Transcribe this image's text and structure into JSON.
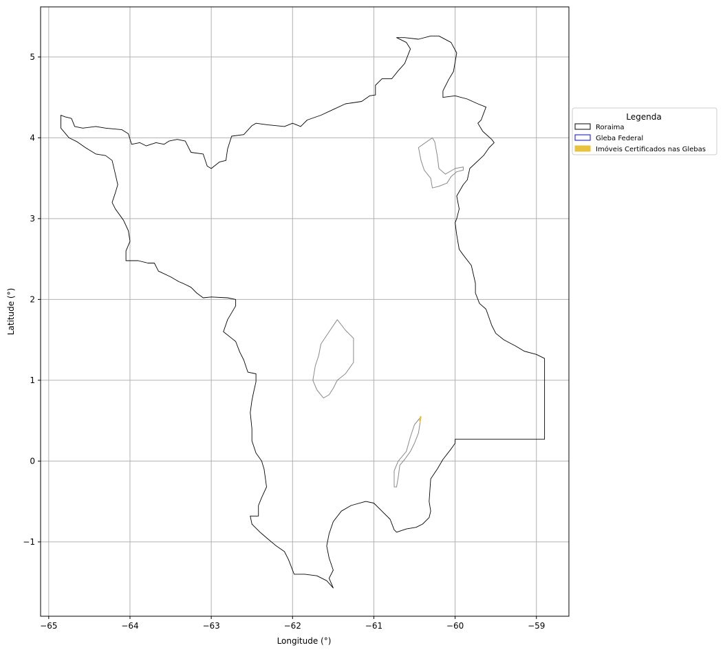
{
  "chart_data": {
    "type": "map",
    "xlabel": "Longitude (°)",
    "ylabel": "Latitude (°)",
    "xlim": [
      -65.1,
      -58.6
    ],
    "ylim": [
      -1.92,
      5.62
    ],
    "grid": true,
    "x_ticks": [
      -65,
      -64,
      -63,
      -62,
      -61,
      -60,
      -59
    ],
    "y_ticks": [
      -1,
      0,
      1,
      2,
      3,
      4,
      5
    ],
    "x_tick_labels": [
      "−65",
      "−64",
      "−63",
      "−62",
      "−61",
      "−60",
      "−59"
    ],
    "y_tick_labels": [
      "−1",
      "0",
      "1",
      "2",
      "3",
      "4",
      "5"
    ],
    "legend": {
      "title": "Legenda",
      "position": "right",
      "entries": [
        {
          "label": "Roraima",
          "edgecolor": "#000000",
          "facecolor": "#ffffff"
        },
        {
          "label": "Gleba Federal",
          "edgecolor": "#0000ff",
          "facecolor": "#ffffff"
        },
        {
          "label": "Imóveis Certificados nas Glebas",
          "edgecolor": "#e8c13e",
          "facecolor": "#e8c13e"
        }
      ]
    },
    "colors": {
      "roraima": "#000000",
      "gleba": "#888888",
      "imoveis": "#e8c13e",
      "grid": "#b0b0b0"
    },
    "roraima_outline": [
      [
        -64.85,
        4.28
      ],
      [
        -64.8,
        4.26
      ],
      [
        -64.72,
        4.24
      ],
      [
        -64.68,
        4.14
      ],
      [
        -64.58,
        4.12
      ],
      [
        -64.42,
        4.14
      ],
      [
        -64.3,
        4.12
      ],
      [
        -64.1,
        4.1
      ],
      [
        -64.02,
        4.05
      ],
      [
        -63.98,
        3.92
      ],
      [
        -63.88,
        3.94
      ],
      [
        -63.8,
        3.9
      ],
      [
        -63.68,
        3.94
      ],
      [
        -63.58,
        3.92
      ],
      [
        -63.52,
        3.96
      ],
      [
        -63.42,
        3.98
      ],
      [
        -63.32,
        3.96
      ],
      [
        -63.25,
        3.82
      ],
      [
        -63.1,
        3.8
      ],
      [
        -63.05,
        3.65
      ],
      [
        -63.0,
        3.62
      ],
      [
        -62.9,
        3.7
      ],
      [
        -62.82,
        3.72
      ],
      [
        -62.8,
        3.86
      ],
      [
        -62.75,
        4.02
      ],
      [
        -62.6,
        4.04
      ],
      [
        -62.5,
        4.15
      ],
      [
        -62.45,
        4.18
      ],
      [
        -62.3,
        4.16
      ],
      [
        -62.1,
        4.14
      ],
      [
        -62.0,
        4.18
      ],
      [
        -61.9,
        4.14
      ],
      [
        -61.82,
        4.22
      ],
      [
        -61.65,
        4.28
      ],
      [
        -61.5,
        4.35
      ],
      [
        -61.35,
        4.42
      ],
      [
        -61.15,
        4.45
      ],
      [
        -61.05,
        4.52
      ],
      [
        -60.98,
        4.53
      ],
      [
        -60.98,
        4.65
      ],
      [
        -60.9,
        4.73
      ],
      [
        -60.78,
        4.73
      ],
      [
        -60.7,
        4.83
      ],
      [
        -60.62,
        4.92
      ],
      [
        -60.55,
        5.1
      ],
      [
        -60.6,
        5.18
      ],
      [
        -60.72,
        5.24
      ],
      [
        -60.62,
        5.24
      ],
      [
        -60.45,
        5.22
      ],
      [
        -60.3,
        5.26
      ],
      [
        -60.2,
        5.26
      ],
      [
        -60.05,
        5.18
      ],
      [
        -59.98,
        5.05
      ],
      [
        -60.02,
        4.82
      ],
      [
        -60.08,
        4.72
      ],
      [
        -60.15,
        4.58
      ],
      [
        -60.15,
        4.5
      ],
      [
        -60.0,
        4.52
      ],
      [
        -59.85,
        4.48
      ],
      [
        -59.72,
        4.42
      ],
      [
        -59.62,
        4.38
      ],
      [
        -59.68,
        4.22
      ],
      [
        -59.72,
        4.18
      ],
      [
        -59.66,
        4.08
      ],
      [
        -59.55,
        3.98
      ],
      [
        -59.52,
        3.94
      ],
      [
        -59.58,
        3.88
      ],
      [
        -59.65,
        3.78
      ],
      [
        -59.82,
        3.62
      ],
      [
        -59.85,
        3.48
      ],
      [
        -59.9,
        3.42
      ],
      [
        -59.98,
        3.28
      ],
      [
        -59.95,
        3.12
      ],
      [
        -59.98,
        3.0
      ],
      [
        -60.0,
        2.95
      ],
      [
        -59.98,
        2.8
      ],
      [
        -59.95,
        2.62
      ],
      [
        -59.9,
        2.55
      ],
      [
        -59.8,
        2.42
      ],
      [
        -59.75,
        2.2
      ],
      [
        -59.75,
        2.08
      ],
      [
        -59.7,
        1.95
      ],
      [
        -59.62,
        1.88
      ],
      [
        -59.55,
        1.68
      ],
      [
        -59.5,
        1.58
      ],
      [
        -59.4,
        1.5
      ],
      [
        -59.25,
        1.42
      ],
      [
        -59.15,
        1.36
      ],
      [
        -59.0,
        1.32
      ],
      [
        -58.9,
        1.27
      ],
      [
        -58.9,
        0.27
      ],
      [
        -60.0,
        0.27
      ],
      [
        -60.0,
        0.22
      ],
      [
        -60.05,
        0.15
      ],
      [
        -60.15,
        0.02
      ],
      [
        -60.22,
        -0.1
      ],
      [
        -60.3,
        -0.22
      ],
      [
        -60.32,
        -0.5
      ],
      [
        -60.3,
        -0.62
      ],
      [
        -60.32,
        -0.7
      ],
      [
        -60.4,
        -0.78
      ],
      [
        -60.48,
        -0.82
      ],
      [
        -60.6,
        -0.84
      ],
      [
        -60.72,
        -0.88
      ],
      [
        -60.75,
        -0.85
      ],
      [
        -60.8,
        -0.72
      ],
      [
        -60.9,
        -0.62
      ],
      [
        -61.0,
        -0.52
      ],
      [
        -61.1,
        -0.5
      ],
      [
        -61.28,
        -0.55
      ],
      [
        -61.4,
        -0.62
      ],
      [
        -61.5,
        -0.75
      ],
      [
        -61.55,
        -0.9
      ],
      [
        -61.58,
        -1.05
      ],
      [
        -61.55,
        -1.2
      ],
      [
        -61.5,
        -1.35
      ],
      [
        -61.55,
        -1.45
      ],
      [
        -61.5,
        -1.57
      ],
      [
        -61.58,
        -1.48
      ],
      [
        -61.7,
        -1.42
      ],
      [
        -61.85,
        -1.4
      ],
      [
        -61.98,
        -1.4
      ],
      [
        -62.05,
        -1.22
      ],
      [
        -62.1,
        -1.12
      ],
      [
        -62.2,
        -1.05
      ],
      [
        -62.32,
        -0.95
      ],
      [
        -62.4,
        -0.88
      ],
      [
        -62.5,
        -0.78
      ],
      [
        -62.52,
        -0.68
      ],
      [
        -62.42,
        -0.68
      ],
      [
        -62.42,
        -0.55
      ],
      [
        -62.38,
        -0.45
      ],
      [
        -62.32,
        -0.32
      ],
      [
        -62.35,
        -0.1
      ],
      [
        -62.38,
        0.0
      ],
      [
        -62.45,
        0.1
      ],
      [
        -62.5,
        0.25
      ],
      [
        -62.5,
        0.4
      ],
      [
        -62.52,
        0.6
      ],
      [
        -62.5,
        0.75
      ],
      [
        -62.48,
        0.85
      ],
      [
        -62.45,
        0.98
      ],
      [
        -62.45,
        1.08
      ],
      [
        -62.55,
        1.1
      ],
      [
        -62.6,
        1.25
      ],
      [
        -62.65,
        1.35
      ],
      [
        -62.7,
        1.48
      ],
      [
        -62.75,
        1.52
      ],
      [
        -62.85,
        1.6
      ],
      [
        -62.8,
        1.75
      ],
      [
        -62.7,
        1.92
      ],
      [
        -62.7,
        2.0
      ],
      [
        -62.8,
        2.02
      ],
      [
        -63.0,
        2.03
      ],
      [
        -63.1,
        2.02
      ],
      [
        -63.18,
        2.08
      ],
      [
        -63.25,
        2.15
      ],
      [
        -63.35,
        2.2
      ],
      [
        -63.4,
        2.22
      ],
      [
        -63.5,
        2.28
      ],
      [
        -63.65,
        2.35
      ],
      [
        -63.7,
        2.45
      ],
      [
        -63.78,
        2.45
      ],
      [
        -63.9,
        2.48
      ],
      [
        -63.98,
        2.48
      ],
      [
        -64.05,
        2.48
      ],
      [
        -64.05,
        2.6
      ],
      [
        -64.0,
        2.72
      ],
      [
        -64.02,
        2.85
      ],
      [
        -64.08,
        2.98
      ],
      [
        -64.18,
        3.12
      ],
      [
        -64.22,
        3.2
      ],
      [
        -64.18,
        3.32
      ],
      [
        -64.15,
        3.42
      ],
      [
        -64.18,
        3.55
      ],
      [
        -64.22,
        3.72
      ],
      [
        -64.3,
        3.78
      ],
      [
        -64.42,
        3.8
      ],
      [
        -64.55,
        3.88
      ],
      [
        -64.65,
        3.95
      ],
      [
        -64.75,
        4.0
      ],
      [
        -64.85,
        4.12
      ],
      [
        -64.85,
        4.28
      ]
    ],
    "gleba_polygons": [
      [
        [
          -60.28,
          4.0
        ],
        [
          -60.35,
          3.95
        ],
        [
          -60.45,
          3.88
        ],
        [
          -60.42,
          3.72
        ],
        [
          -60.38,
          3.6
        ],
        [
          -60.3,
          3.5
        ],
        [
          -60.28,
          3.38
        ],
        [
          -60.2,
          3.4
        ],
        [
          -60.1,
          3.44
        ],
        [
          -60.05,
          3.52
        ],
        [
          -59.98,
          3.58
        ],
        [
          -59.9,
          3.6
        ],
        [
          -59.9,
          3.64
        ],
        [
          -60.0,
          3.62
        ],
        [
          -60.12,
          3.55
        ],
        [
          -60.2,
          3.62
        ],
        [
          -60.22,
          3.78
        ],
        [
          -60.25,
          3.95
        ],
        [
          -60.28,
          4.0
        ]
      ],
      [
        [
          -61.45,
          1.75
        ],
        [
          -61.55,
          1.6
        ],
        [
          -61.65,
          1.45
        ],
        [
          -61.68,
          1.3
        ],
        [
          -61.72,
          1.18
        ],
        [
          -61.75,
          1.0
        ],
        [
          -61.7,
          0.88
        ],
        [
          -61.62,
          0.78
        ],
        [
          -61.55,
          0.82
        ],
        [
          -61.5,
          0.9
        ],
        [
          -61.45,
          1.0
        ],
        [
          -61.35,
          1.08
        ],
        [
          -61.25,
          1.22
        ],
        [
          -61.25,
          1.35
        ],
        [
          -61.25,
          1.52
        ],
        [
          -61.35,
          1.62
        ],
        [
          -61.45,
          1.75
        ]
      ],
      [
        [
          -60.42,
          0.55
        ],
        [
          -60.5,
          0.45
        ],
        [
          -60.55,
          0.3
        ],
        [
          -60.6,
          0.12
        ],
        [
          -60.7,
          0.0
        ],
        [
          -60.75,
          -0.12
        ],
        [
          -60.75,
          -0.32
        ],
        [
          -60.72,
          -0.32
        ],
        [
          -60.7,
          -0.2
        ],
        [
          -60.68,
          -0.05
        ],
        [
          -60.62,
          0.02
        ],
        [
          -60.55,
          0.12
        ],
        [
          -60.5,
          0.22
        ],
        [
          -60.45,
          0.35
        ],
        [
          -60.42,
          0.55
        ]
      ]
    ],
    "imoveis_polygons": [
      [
        [
          -60.44,
          0.5
        ],
        [
          -60.43,
          0.55
        ],
        [
          -60.42,
          0.54
        ],
        [
          -60.43,
          0.48
        ],
        [
          -60.44,
          0.5
        ]
      ]
    ]
  }
}
